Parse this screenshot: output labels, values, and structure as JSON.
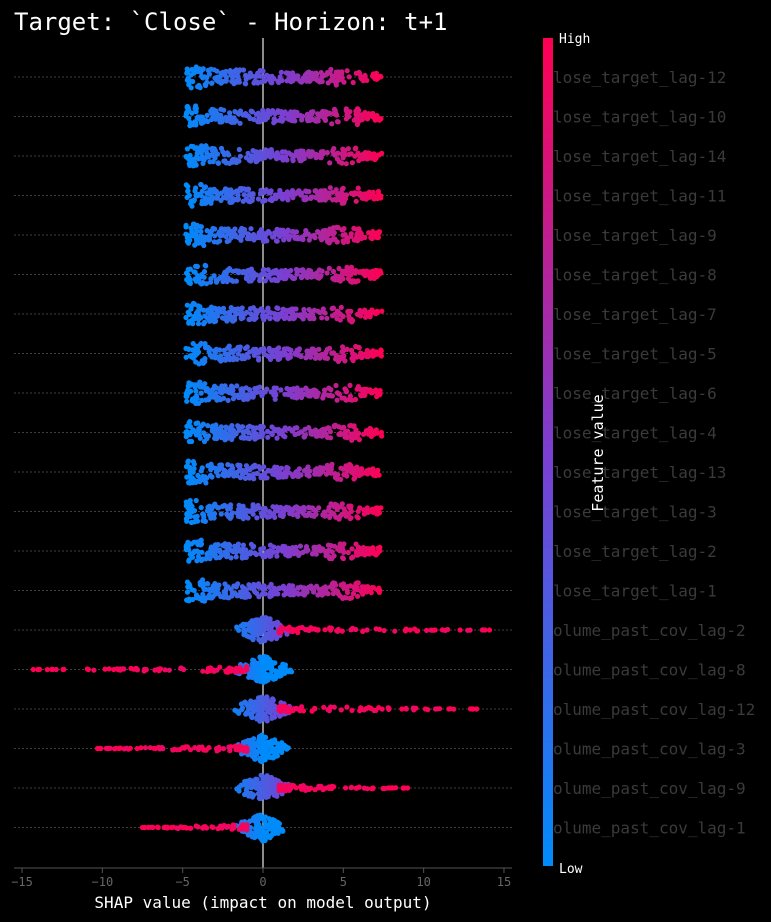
{
  "chart_data": {
    "type": "scatter",
    "subtype": "shap-beeswarm",
    "title": "Target: `Close` - Horizon: t+1",
    "xlabel": "SHAP value (impact on model output)",
    "xlim": [
      -15.5,
      15.5
    ],
    "xticks": [
      -15,
      -10,
      -5,
      0,
      5,
      10,
      15
    ],
    "colorbar": {
      "label": "Feature value",
      "high": "High",
      "low": "Low",
      "low_color": "#008bfb",
      "high_color": "#ff0052"
    },
    "features": [
      {
        "name": "lose_target_lag-12",
        "kind": "target",
        "min": -4.8,
        "max": 7.4
      },
      {
        "name": "lose_target_lag-10",
        "kind": "target",
        "min": -4.8,
        "max": 7.4
      },
      {
        "name": "lose_target_lag-14",
        "kind": "target",
        "min": -4.8,
        "max": 7.4
      },
      {
        "name": "lose_target_lag-11",
        "kind": "target",
        "min": -4.8,
        "max": 7.4
      },
      {
        "name": "lose_target_lag-9",
        "kind": "target",
        "min": -4.8,
        "max": 7.4
      },
      {
        "name": "lose_target_lag-8",
        "kind": "target",
        "min": -4.8,
        "max": 7.4
      },
      {
        "name": "lose_target_lag-7",
        "kind": "target",
        "min": -4.8,
        "max": 7.4
      },
      {
        "name": "lose_target_lag-5",
        "kind": "target",
        "min": -4.8,
        "max": 7.4
      },
      {
        "name": "lose_target_lag-6",
        "kind": "target",
        "min": -4.8,
        "max": 7.4
      },
      {
        "name": "lose_target_lag-4",
        "kind": "target",
        "min": -4.8,
        "max": 7.4
      },
      {
        "name": "lose_target_lag-13",
        "kind": "target",
        "min": -4.8,
        "max": 7.4
      },
      {
        "name": "lose_target_lag-3",
        "kind": "target",
        "min": -4.8,
        "max": 7.4
      },
      {
        "name": "lose_target_lag-2",
        "kind": "target",
        "min": -4.8,
        "max": 7.4
      },
      {
        "name": "lose_target_lag-1",
        "kind": "target",
        "min": -4.8,
        "max": 7.4
      },
      {
        "name": "olume_past_cov_lag-2",
        "kind": "pos",
        "min": -2.2,
        "max": 14.1
      },
      {
        "name": "olume_past_cov_lag-8",
        "kind": "neg",
        "min": -14.3,
        "max": 2.2
      },
      {
        "name": "olume_past_cov_lag-12",
        "kind": "pos",
        "min": -2.2,
        "max": 13.3
      },
      {
        "name": "olume_past_cov_lag-3",
        "kind": "neg",
        "min": -10.3,
        "max": 1.8
      },
      {
        "name": "olume_past_cov_lag-9",
        "kind": "pos",
        "min": -1.3,
        "max": 9.0
      },
      {
        "name": "olume_past_cov_lag-1",
        "kind": "neg",
        "min": -7.5,
        "max": 1.3
      }
    ]
  }
}
